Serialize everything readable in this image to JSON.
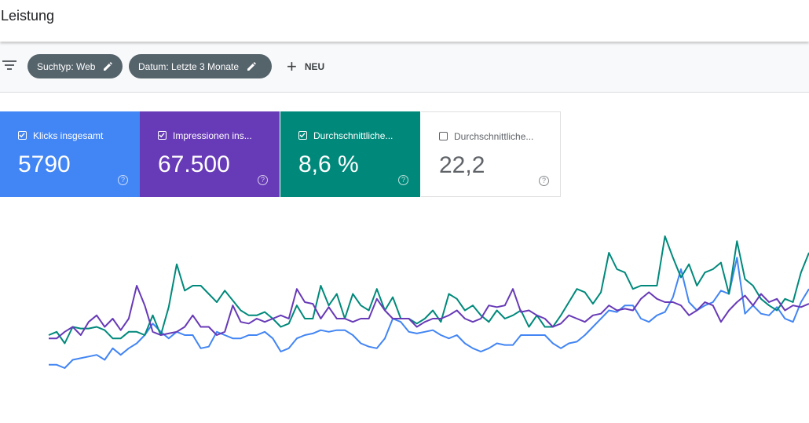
{
  "header": {
    "title": "Leistung"
  },
  "filters": {
    "icon": "filter-icon",
    "chips": [
      {
        "label": "Suchtyp: Web",
        "icon": "edit-icon"
      },
      {
        "label": "Datum: Letzte 3 Monate",
        "icon": "edit-icon"
      }
    ],
    "new_label": "NEU"
  },
  "metrics": [
    {
      "label": "Klicks insgesamt",
      "value": "5790",
      "checked": true,
      "color": "#4285f4"
    },
    {
      "label": "Impressionen ins...",
      "value": "67.500",
      "checked": true,
      "color": "#673ab7"
    },
    {
      "label": "Durchschnittliche...",
      "value": "8,6 %",
      "checked": true,
      "color": "#00897b"
    },
    {
      "label": "Durchschnittliche...",
      "value": "22,2",
      "checked": false,
      "color": "#ffffff"
    }
  ],
  "chart_data": {
    "type": "line",
    "title": "",
    "xlabel": "",
    "ylabel": "",
    "grid": false,
    "ylim": [
      0,
      100
    ],
    "series": [
      {
        "color": "#4285f4",
        "values": [
          12,
          12,
          10,
          15,
          16,
          17,
          18,
          15,
          22,
          18,
          22,
          25,
          30,
          37,
          32,
          28,
          32,
          30,
          30,
          22,
          23,
          32,
          30,
          28,
          28,
          30,
          30,
          32,
          28,
          20,
          22,
          28,
          30,
          31,
          33,
          32,
          33,
          33,
          30,
          25,
          23,
          22,
          28,
          40,
          38,
          32,
          31,
          32,
          33,
          30,
          28,
          30,
          25,
          22,
          20,
          22,
          25,
          24,
          24,
          30,
          30,
          30,
          30,
          25,
          22,
          25,
          26,
          30,
          35,
          40,
          45,
          44,
          48,
          48,
          40,
          38,
          42,
          44,
          53,
          70,
          50,
          45,
          48,
          50,
          57,
          55,
          77,
          43,
          48,
          43,
          42,
          47,
          40,
          38,
          50,
          58
        ]
      },
      {
        "color": "#00897b",
        "values": [
          30,
          32,
          25,
          35,
          34,
          34,
          35,
          33,
          28,
          28,
          32,
          32,
          30,
          42,
          30,
          47,
          73,
          57,
          60,
          60,
          55,
          50,
          57,
          51,
          45,
          42,
          42,
          44,
          40,
          35,
          37,
          48,
          40,
          40,
          60,
          48,
          55,
          40,
          55,
          48,
          45,
          58,
          45,
          53,
          40,
          40,
          37,
          40,
          45,
          38,
          55,
          52,
          45,
          48,
          42,
          38,
          45,
          40,
          42,
          45,
          35,
          42,
          35,
          35,
          42,
          50,
          58,
          56,
          49,
          56,
          80,
          70,
          68,
          58,
          60,
          60,
          60,
          90,
          77,
          65,
          73,
          60,
          68,
          70,
          74,
          55,
          87,
          64,
          60,
          52,
          48,
          45,
          52,
          50,
          68,
          80
        ]
      },
      {
        "color": "#673ab7",
        "values": [
          28,
          28,
          32,
          35,
          30,
          38,
          42,
          35,
          40,
          33,
          40,
          60,
          48,
          32,
          30,
          31,
          32,
          35,
          42,
          35,
          35,
          30,
          32,
          48,
          38,
          37,
          40,
          38,
          40,
          42,
          40,
          58,
          50,
          49,
          40,
          47,
          40,
          40,
          38,
          40,
          40,
          52,
          45,
          40,
          40,
          40,
          35,
          38,
          40,
          40,
          42,
          45,
          40,
          38,
          40,
          48,
          47,
          48,
          58,
          44,
          45,
          42,
          40,
          35,
          37,
          42,
          40,
          38,
          42,
          43,
          48,
          45,
          46,
          45,
          52,
          56,
          52,
          50,
          50,
          48,
          42,
          45,
          50,
          48,
          38,
          45,
          50,
          54,
          48,
          55,
          50,
          52,
          45,
          48,
          47,
          49
        ]
      }
    ]
  }
}
